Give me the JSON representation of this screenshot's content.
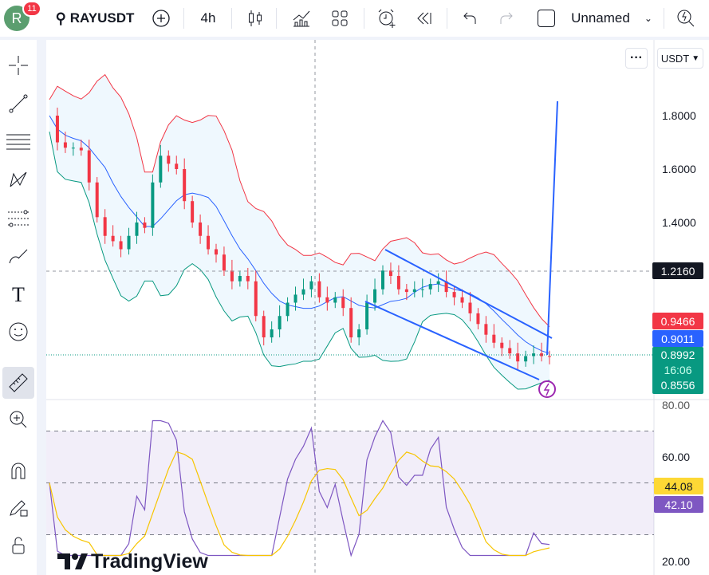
{
  "header": {
    "avatar_letter": "R",
    "notifications": "11",
    "symbol": "RAYUSDT",
    "interval": "4h",
    "layout_name": "Unnamed"
  },
  "chart_menu": {
    "more": "···",
    "currency": "USDT"
  },
  "price_axis": {
    "ticks": [
      "1.8000",
      "1.6000",
      "1.4000"
    ],
    "labels": {
      "crosshair": "1.2160",
      "bb_upper": "0.9466",
      "bb_basis": "0.9011",
      "last_price": "0.8992",
      "countdown": "16:06",
      "bb_lower": "0.8556"
    }
  },
  "rsi_axis": {
    "ticks": [
      "80.00",
      "60.00",
      "20.00"
    ],
    "labels": {
      "rsi_ma": "44.08",
      "rsi": "42.10"
    }
  },
  "colors": {
    "up": "#089981",
    "down": "#f23645",
    "bb_upper": "#f23645",
    "bb_basis": "#2962ff",
    "bb_lower": "#089981",
    "rsi": "#7e57c2",
    "rsi_ma": "#f7c500",
    "drawing": "#2962ff",
    "crosshair_label": "#131722"
  },
  "logo": "TradingView",
  "chart_data": {
    "type": "candlestick",
    "closes": [
      1.8,
      1.7,
      1.68,
      1.68,
      1.67,
      1.55,
      1.42,
      1.35,
      1.33,
      1.3,
      1.35,
      1.4,
      1.38,
      1.55,
      1.65,
      1.62,
      1.6,
      1.48,
      1.4,
      1.35,
      1.3,
      1.28,
      1.22,
      1.18,
      1.2,
      1.18,
      1.05,
      0.97,
      1.0,
      1.05,
      1.1,
      1.13,
      1.15,
      1.18,
      1.12,
      1.1,
      1.12,
      1.08,
      0.97,
      1.0,
      1.1,
      1.15,
      1.22,
      1.2,
      1.15,
      1.14,
      1.15,
      1.15,
      1.17,
      1.18,
      1.14,
      1.12,
      1.1,
      1.06,
      1.02,
      0.98,
      0.95,
      0.93,
      0.91,
      0.88,
      0.9,
      0.91,
      0.9,
      0.8992
    ],
    "ylim": [
      0.8,
      1.9
    ],
    "indicators": [
      "Bollinger Bands",
      "RSI"
    ]
  }
}
